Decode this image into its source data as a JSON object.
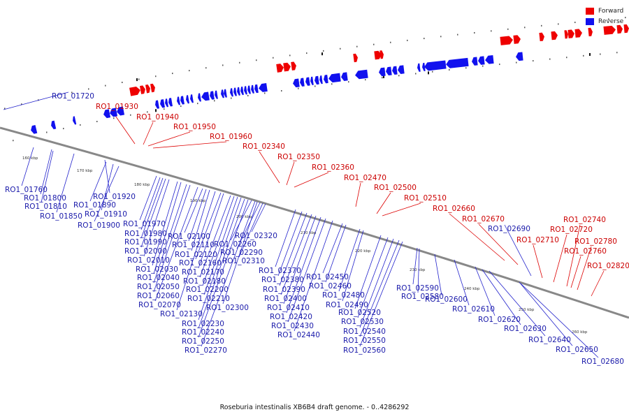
{
  "caption": "Roseburia intestinalis XB6B4 draft genome. - 0..4286292",
  "legend": [
    {
      "label": "Forward",
      "color": "#ee0000"
    },
    {
      "label": "Reverse",
      "color": "#1111ee"
    }
  ],
  "colors": {
    "forward": "#ee0000",
    "reverse": "#1111ee",
    "backbone": "#888888",
    "forward_text": "#cc0000",
    "reverse_text": "#1a1aaa"
  },
  "scale_labels": [
    "160 kbp",
    "170 kbp",
    "180 kbp",
    "190 kbp",
    "200 kbp",
    "210 kbp",
    "220 kbp",
    "230 kbp",
    "240 kbp",
    "250 kbp",
    "260 kbp"
  ],
  "forward_genes": [
    "RO1_01930",
    "RO1_01940",
    "RO1_01950",
    "RO1_01960",
    "RO1_02340",
    "RO1_02350",
    "RO1_02360",
    "RO1_02470",
    "RO1_02500",
    "RO1_02510",
    "RO1_02660",
    "RO1_02670",
    "RO1_02710",
    "RO1_02720",
    "RO1_02740",
    "RO1_02760",
    "RO1_02780",
    "RO1_02820"
  ],
  "reverse_genes": [
    "RO1_01720",
    "RO1_01760",
    "RO1_01800",
    "RO1_01810",
    "RO1_01850",
    "RO1_01890",
    "RO1_01900",
    "RO1_01910",
    "RO1_01920",
    "RO1_01970",
    "RO1_01980",
    "RO1_01990",
    "RO1_02000",
    "RO1_02010",
    "RO1_02030",
    "RO1_02040",
    "RO1_02050",
    "RO1_02060",
    "RO1_02070",
    "RO1_02100",
    "RO1_02110",
    "RO1_02120",
    "RO1_02130",
    "RO1_02160",
    "RO1_02170",
    "RO1_02180",
    "RO1_02200",
    "RO1_02210",
    "RO1_02230",
    "RO1_02240",
    "RO1_02250",
    "RO1_02260",
    "RO1_02270",
    "RO1_02290",
    "RO1_02300",
    "RO1_02310",
    "RO1_02320",
    "RO1_02370",
    "RO1_02380",
    "RO1_02390",
    "RO1_02400",
    "RO1_02410",
    "RO1_02420",
    "RO1_02430",
    "RO1_02440",
    "RO1_02450",
    "RO1_02460",
    "RO1_02480",
    "RO1_02490",
    "RO1_02520",
    "RO1_02530",
    "RO1_02540",
    "RO1_02550",
    "RO1_02560",
    "RO1_02580",
    "RO1_02590",
    "RO1_02600",
    "RO1_02610",
    "RO1_02620",
    "RO1_02630",
    "RO1_02640",
    "RO1_02650",
    "RO1_02680",
    "RO1_02690"
  ]
}
